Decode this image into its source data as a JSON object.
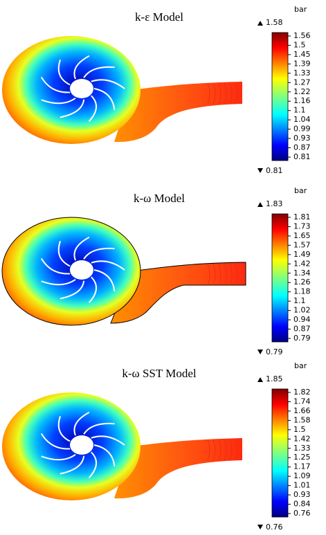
{
  "panels": [
    {
      "title": "k-ε Model",
      "unit": "bar",
      "max": "1.58",
      "min": "0.81",
      "ticks": [
        "1.56",
        "1.5",
        "1.45",
        "1.39",
        "1.33",
        "1.27",
        "1.22",
        "1.16",
        "1.1",
        "1.04",
        "0.99",
        "0.93",
        "0.87",
        "0.81"
      ]
    },
    {
      "title": "k-ω Model",
      "unit": "bar",
      "max": "1.83",
      "min": "0.79",
      "ticks": [
        "1.81",
        "1.73",
        "1.65",
        "1.57",
        "1.49",
        "1.42",
        "1.34",
        "1.26",
        "1.18",
        "1.1",
        "1.02",
        "0.94",
        "0.87",
        "0.79"
      ]
    },
    {
      "title": "k-ω SST Model",
      "unit": "bar",
      "max": "1.85",
      "min": "0.76",
      "ticks": [
        "1.82",
        "1.74",
        "1.66",
        "1.58",
        "1.5",
        "1.42",
        "1.33",
        "1.25",
        "1.17",
        "1.09",
        "1.01",
        "0.93",
        "0.84",
        "0.76"
      ]
    }
  ]
}
